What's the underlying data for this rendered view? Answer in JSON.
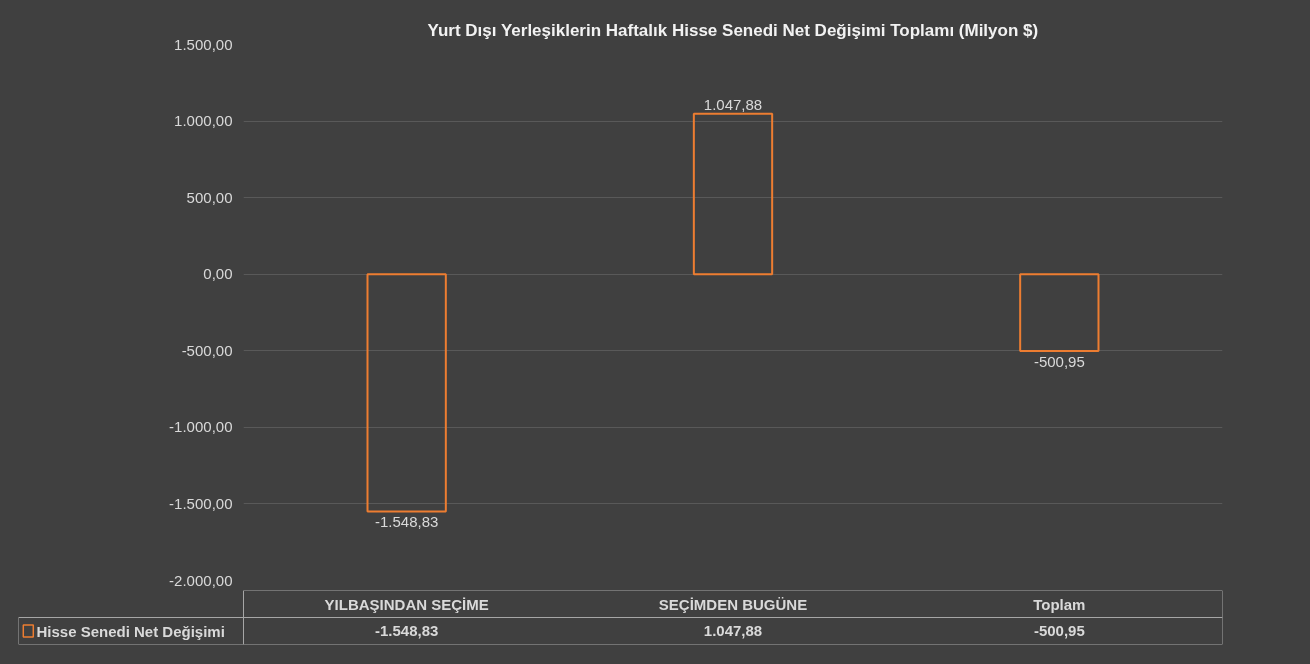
{
  "chart_data": {
    "type": "bar",
    "title": "Yurt Dışı Yerleşiklerin Haftalık Hisse Senedi Net Değişimi Toplamı (Milyon $)",
    "categories": [
      "YILBAŞINDAN SEÇİME",
      "SEÇİMDEN BUGÜNE",
      "Toplam"
    ],
    "series": [
      {
        "name": "Hisse Senedi Net Değişimi",
        "color": "#ed7d31",
        "values": [
          -1548.83,
          1047.88,
          -500.95
        ],
        "value_labels": [
          "-1.548,83",
          "1.047,88",
          "-500,95"
        ]
      }
    ],
    "ylim": [
      -2000,
      1500
    ],
    "yticks": [
      {
        "value": -2000,
        "label": "-2.000,00"
      },
      {
        "value": -1500,
        "label": "-1.500,00"
      },
      {
        "value": -1000,
        "label": "-1.000,00"
      },
      {
        "value": -500,
        "label": "-500,00"
      },
      {
        "value": 0,
        "label": "0,00"
      },
      {
        "value": 500,
        "label": "500,00"
      },
      {
        "value": 1000,
        "label": "1.000,00"
      },
      {
        "value": 1500,
        "label": "1.500,00"
      }
    ],
    "grid": "y",
    "legend": "bottom"
  }
}
